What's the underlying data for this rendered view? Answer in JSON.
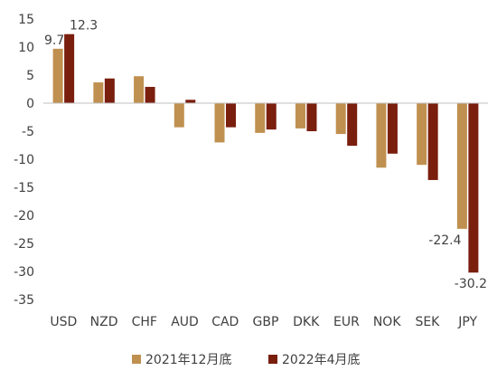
{
  "chart_data": {
    "type": "bar",
    "categories": [
      "USD",
      "NZD",
      "CHF",
      "AUD",
      "CAD",
      "GBP",
      "DKK",
      "EUR",
      "NOK",
      "SEK",
      "JPY"
    ],
    "series": [
      {
        "name": "2021年12月底",
        "color": "#c09050",
        "values": [
          9.7,
          3.7,
          4.8,
          -4.3,
          -7.0,
          -5.3,
          -4.5,
          -5.5,
          -11.5,
          -11.0,
          -22.4
        ]
      },
      {
        "name": "2022年4月底",
        "color": "#7a1e0e",
        "values": [
          12.3,
          4.4,
          2.9,
          0.6,
          -4.3,
          -4.7,
          -5.0,
          -7.6,
          -9.0,
          -13.7,
          -30.2
        ]
      }
    ],
    "data_labels": [
      {
        "series": 0,
        "index": 0,
        "text": "9.7"
      },
      {
        "series": 1,
        "index": 0,
        "text": "12.3"
      },
      {
        "series": 0,
        "index": 10,
        "text": "-22.4"
      },
      {
        "series": 1,
        "index": 10,
        "text": "-30.2"
      }
    ],
    "yticks": [
      15,
      10,
      5,
      0,
      -5,
      -10,
      -15,
      -20,
      -25,
      -30,
      -35
    ],
    "ylim": [
      -35,
      15
    ],
    "legend_position": "bottom",
    "grid": false
  }
}
